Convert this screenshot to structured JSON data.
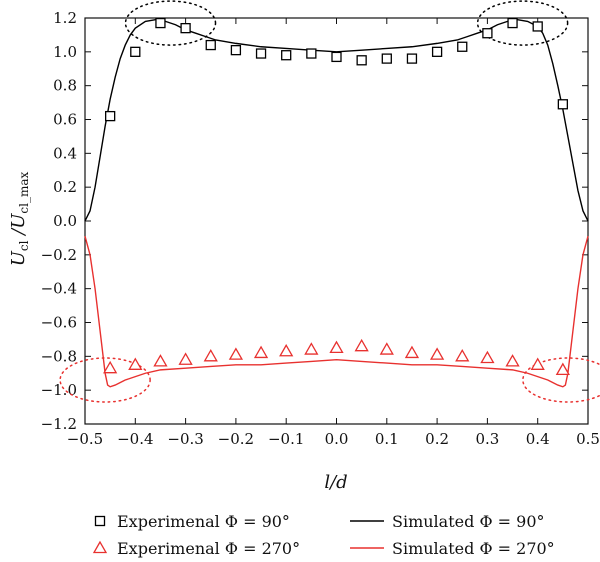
{
  "chart_data": {
    "type": "scatter",
    "title": "",
    "xlabel": "l/d",
    "ylabel": "U_cl / U_cl_max",
    "xlim": [
      -0.5,
      0.5
    ],
    "ylim": [
      -1.2,
      1.2
    ],
    "x_ticks": [
      -0.5,
      -0.4,
      -0.3,
      -0.2,
      -0.1,
      0.0,
      0.1,
      0.2,
      0.3,
      0.4,
      0.5
    ],
    "y_ticks": [
      -1.2,
      -1.0,
      -0.8,
      -0.6,
      -0.4,
      -0.2,
      0.0,
      0.2,
      0.4,
      0.6,
      0.8,
      1.0,
      1.2
    ],
    "x_tick_labels": [
      "−0.5",
      "−0.4",
      "−0.3",
      "−0.2",
      "−0.1",
      "0.0",
      "0.1",
      "0.2",
      "0.3",
      "0.4",
      "0.5"
    ],
    "y_tick_labels": [
      "−1.2",
      "−1.0",
      "−0.8",
      "−0.6",
      "−0.4",
      "−0.2",
      "0.0",
      "0.2",
      "0.4",
      "0.6",
      "0.8",
      "1.0",
      "1.2"
    ],
    "grid": false,
    "legend_position": "bottom",
    "series": [
      {
        "name": "Experimenal Φ = 90°",
        "kind": "scatter",
        "marker": "square",
        "color": "#000000",
        "x": [
          -0.45,
          -0.4,
          -0.35,
          -0.3,
          -0.25,
          -0.2,
          -0.15,
          -0.1,
          -0.05,
          0.0,
          0.05,
          0.1,
          0.15,
          0.2,
          0.25,
          0.3,
          0.35,
          0.4,
          0.45
        ],
        "y": [
          0.62,
          1.0,
          1.17,
          1.14,
          1.04,
          1.01,
          0.99,
          0.98,
          0.99,
          0.97,
          0.95,
          0.96,
          0.96,
          1.0,
          1.03,
          1.11,
          1.17,
          1.15,
          0.69
        ]
      },
      {
        "name": "Experimenal Φ = 270°",
        "kind": "scatter",
        "marker": "triangle",
        "color": "#e8312f",
        "x": [
          -0.45,
          -0.4,
          -0.35,
          -0.3,
          -0.25,
          -0.2,
          -0.15,
          -0.1,
          -0.05,
          0.0,
          0.05,
          0.1,
          0.15,
          0.2,
          0.25,
          0.3,
          0.35,
          0.4,
          0.45
        ],
        "y": [
          -0.87,
          -0.85,
          -0.83,
          -0.82,
          -0.8,
          -0.79,
          -0.78,
          -0.77,
          -0.76,
          -0.75,
          -0.74,
          -0.76,
          -0.78,
          -0.79,
          -0.8,
          -0.81,
          -0.83,
          -0.85,
          -0.88
        ]
      },
      {
        "name": "Simulated Φ = 90°",
        "kind": "line",
        "color": "#000000",
        "x": [
          -0.5,
          -0.49,
          -0.48,
          -0.47,
          -0.46,
          -0.45,
          -0.44,
          -0.43,
          -0.42,
          -0.41,
          -0.4,
          -0.38,
          -0.36,
          -0.35,
          -0.34,
          -0.32,
          -0.3,
          -0.28,
          -0.26,
          -0.24,
          -0.22,
          -0.2,
          -0.15,
          -0.1,
          -0.05,
          0.0,
          0.05,
          0.1,
          0.15,
          0.2,
          0.22,
          0.24,
          0.26,
          0.28,
          0.3,
          0.32,
          0.34,
          0.35,
          0.36,
          0.38,
          0.4,
          0.41,
          0.42,
          0.43,
          0.44,
          0.45,
          0.46,
          0.47,
          0.48,
          0.49,
          0.5
        ],
        "y": [
          0.0,
          0.06,
          0.2,
          0.38,
          0.56,
          0.72,
          0.85,
          0.96,
          1.04,
          1.1,
          1.14,
          1.18,
          1.19,
          1.19,
          1.18,
          1.16,
          1.13,
          1.11,
          1.09,
          1.07,
          1.06,
          1.05,
          1.03,
          1.02,
          1.01,
          1.0,
          1.01,
          1.02,
          1.03,
          1.05,
          1.06,
          1.07,
          1.09,
          1.11,
          1.13,
          1.16,
          1.18,
          1.19,
          1.19,
          1.18,
          1.15,
          1.11,
          1.04,
          0.93,
          0.8,
          0.66,
          0.5,
          0.34,
          0.18,
          0.06,
          0.0
        ]
      },
      {
        "name": "Simulated Φ = 270°",
        "kind": "line",
        "color": "#e8312f",
        "x": [
          -0.5,
          -0.49,
          -0.48,
          -0.47,
          -0.46,
          -0.455,
          -0.45,
          -0.44,
          -0.42,
          -0.4,
          -0.38,
          -0.35,
          -0.3,
          -0.25,
          -0.2,
          -0.15,
          -0.1,
          -0.05,
          0.0,
          0.05,
          0.1,
          0.15,
          0.2,
          0.25,
          0.3,
          0.35,
          0.38,
          0.4,
          0.42,
          0.44,
          0.45,
          0.455,
          0.46,
          0.47,
          0.48,
          0.49,
          0.5
        ],
        "y": [
          -0.09,
          -0.2,
          -0.4,
          -0.65,
          -0.9,
          -0.97,
          -0.98,
          -0.97,
          -0.94,
          -0.92,
          -0.9,
          -0.88,
          -0.87,
          -0.86,
          -0.85,
          -0.85,
          -0.84,
          -0.83,
          -0.82,
          -0.83,
          -0.84,
          -0.85,
          -0.85,
          -0.86,
          -0.87,
          -0.88,
          -0.9,
          -0.92,
          -0.94,
          -0.97,
          -0.98,
          -0.97,
          -0.9,
          -0.65,
          -0.4,
          -0.2,
          -0.09
        ]
      }
    ],
    "annotations": [
      {
        "shape": "dotted-ellipse",
        "color": "#000000",
        "center": [
          -0.33,
          1.17
        ]
      },
      {
        "shape": "dotted-ellipse",
        "color": "#000000",
        "center": [
          0.37,
          1.17
        ]
      },
      {
        "shape": "dotted-ellipse",
        "color": "#e8312f",
        "center": [
          -0.46,
          -0.94
        ]
      },
      {
        "shape": "dotted-ellipse",
        "color": "#e8312f",
        "center": [
          0.46,
          -0.94
        ]
      }
    ]
  }
}
